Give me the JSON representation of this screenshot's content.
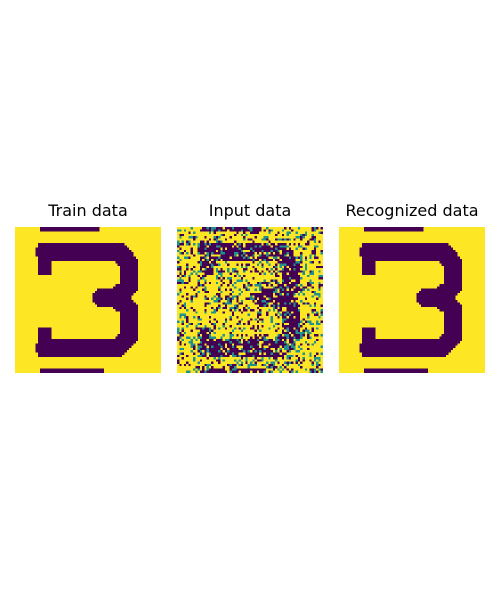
{
  "chart_data": {
    "type": "heatmap",
    "colormap": "viridis",
    "colors": {
      "low": "#440154",
      "mid": "#21918c",
      "high": "#fde725"
    },
    "grid": false,
    "axes_visible": false,
    "panels": [
      {
        "title": "Train data",
        "content": "digit 3 pattern",
        "noise_fraction": 0.0
      },
      {
        "title": "Input data",
        "content": "digit 3 pattern with noise",
        "noise_fraction": 0.3
      },
      {
        "title": "Recognized data",
        "content": "digit 3 pattern",
        "noise_fraction": 0.0
      }
    ]
  }
}
